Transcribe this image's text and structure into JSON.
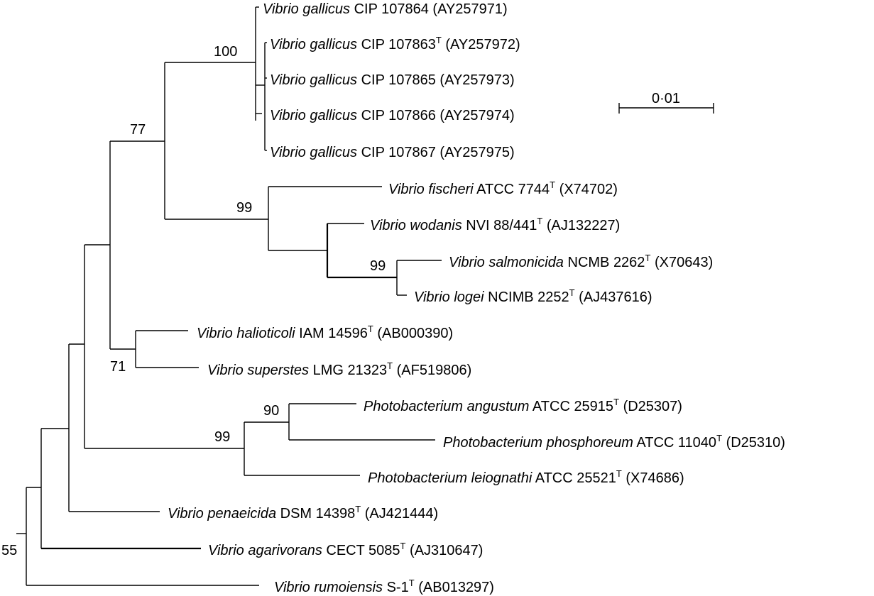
{
  "scale_bar": {
    "label": "0·01"
  },
  "taxa": [
    {
      "id": "t1",
      "genus_species": "Vibrio gallicus",
      "strain": "CIP 107864",
      "type_strain": false,
      "accession": "(AY257971)"
    },
    {
      "id": "t2",
      "genus_species": "Vibrio gallicus",
      "strain": "CIP 107863",
      "type_strain": true,
      "accession": "(AY257972)"
    },
    {
      "id": "t3",
      "genus_species": "Vibrio gallicus",
      "strain": "CIP 107865",
      "type_strain": false,
      "accession": "(AY257973)"
    },
    {
      "id": "t4",
      "genus_species": "Vibrio gallicus",
      "strain": "CIP 107866",
      "type_strain": false,
      "accession": "(AY257974)"
    },
    {
      "id": "t5",
      "genus_species": "Vibrio gallicus",
      "strain": "CIP 107867",
      "type_strain": false,
      "accession": "(AY257975)"
    },
    {
      "id": "t6",
      "genus_species": "Vibrio fischeri",
      "strain": "ATCC 7744",
      "type_strain": true,
      "accession": "(X74702)"
    },
    {
      "id": "t7",
      "genus_species": "Vibrio wodanis",
      "strain": "NVI 88/441",
      "type_strain": true,
      "accession": "(AJ132227)"
    },
    {
      "id": "t8",
      "genus_species": "Vibrio salmonicida",
      "strain": "NCMB 2262",
      "type_strain": true,
      "accession": "(X70643)"
    },
    {
      "id": "t9",
      "genus_species": "Vibrio logei",
      "strain": "NCIMB 2252",
      "type_strain": true,
      "accession": "(AJ437616)"
    },
    {
      "id": "t10",
      "genus_species": "Vibrio halioticoli",
      "strain": "IAM 14596",
      "type_strain": true,
      "accession": "(AB000390)"
    },
    {
      "id": "t11",
      "genus_species": "Vibrio superstes",
      "strain": "LMG 21323",
      "type_strain": true,
      "accession": "(AF519806)"
    },
    {
      "id": "t12",
      "genus_species": "Photobacterium angustum",
      "strain": "ATCC 25915",
      "type_strain": true,
      "accession": "(D25307)"
    },
    {
      "id": "t13",
      "genus_species": "Photobacterium phosphoreum",
      "strain": "ATCC 11040",
      "type_strain": true,
      "accession": "(D25310)"
    },
    {
      "id": "t14",
      "genus_species": "Photobacterium leiognathi",
      "strain": "ATCC 25521",
      "type_strain": true,
      "accession": "(X74686)"
    },
    {
      "id": "t15",
      "genus_species": "Vibrio penaeicida",
      "strain": "DSM 14398",
      "type_strain": true,
      "accession": "(AJ421444)"
    },
    {
      "id": "t16",
      "genus_species": "Vibrio agarivorans",
      "strain": "CECT 5085",
      "type_strain": true,
      "accession": "(AJ310647)"
    },
    {
      "id": "t17",
      "genus_species": "Vibrio rumoiensis",
      "strain": "S-1",
      "type_strain": true,
      "accession": "(AB013297)"
    }
  ],
  "bootstrap_values": [
    {
      "id": "b_gallicus",
      "value": "100"
    },
    {
      "id": "b_vibrio_clade",
      "value": "77"
    },
    {
      "id": "b_fischeri",
      "value": "99"
    },
    {
      "id": "b_salmonicida",
      "value": "99"
    },
    {
      "id": "b_halioticoli",
      "value": "71"
    },
    {
      "id": "b_photo_angustum",
      "value": "90"
    },
    {
      "id": "b_photobacterium",
      "value": "99"
    },
    {
      "id": "b_root",
      "value": "55"
    }
  ],
  "type_marker": "T"
}
